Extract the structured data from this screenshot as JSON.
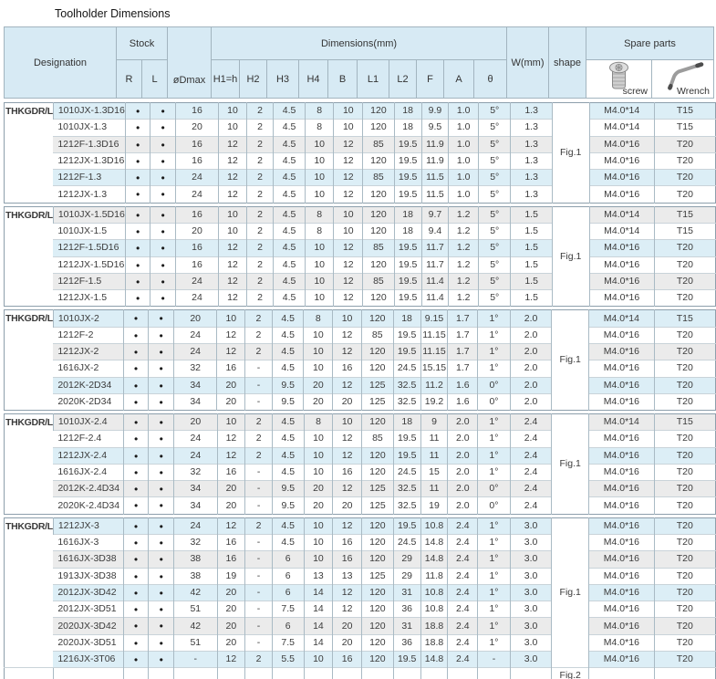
{
  "title": "Toolholder Dimensions",
  "colors": {
    "header_bg": "#d7eaf4",
    "row_blue": "#dceef6",
    "row_gray": "#ebebeb",
    "table_border": "#8d9fac"
  },
  "stock_dot": "●",
  "header": {
    "designation": "Designation",
    "stock": "Stock",
    "stock_r": "R",
    "stock_l": "L",
    "odmax": "øDmax",
    "dimensions": "Dimensions(mm)",
    "dim_cols": [
      "H1=h",
      "H2",
      "H3",
      "H4",
      "B",
      "L1",
      "L2",
      "F",
      "A",
      "θ"
    ],
    "w": "W(mm)",
    "shape": "shape",
    "spare_parts": "Spare parts",
    "screw": "screw",
    "wrench": "Wrench"
  },
  "groups": [
    {
      "prefix": "THKGDR/L",
      "fig": "Fig.1",
      "rows": [
        {
          "model": "1010JX-1.3D16",
          "odmax": "16",
          "h1": "10",
          "h2": "2",
          "h3": "4.5",
          "h4": "8",
          "b": "10",
          "l1": "120",
          "l2": "18",
          "f": "9.9",
          "a": "1.0",
          "theta": "5°",
          "w": "1.3",
          "screw": "M4.0*14",
          "wrench": "T15",
          "shade": "blue"
        },
        {
          "model": "1010JX-1.3",
          "odmax": "20",
          "h1": "10",
          "h2": "2",
          "h3": "4.5",
          "h4": "8",
          "b": "10",
          "l1": "120",
          "l2": "18",
          "f": "9.5",
          "a": "1.0",
          "theta": "5°",
          "w": "1.3",
          "screw": "M4.0*14",
          "wrench": "T15",
          "shade": "white"
        },
        {
          "model": "1212F-1.3D16",
          "odmax": "16",
          "h1": "12",
          "h2": "2",
          "h3": "4.5",
          "h4": "10",
          "b": "12",
          "l1": "85",
          "l2": "19.5",
          "f": "11.9",
          "a": "1.0",
          "theta": "5°",
          "w": "1.3",
          "screw": "M4.0*16",
          "wrench": "T20",
          "shade": "gray"
        },
        {
          "model": "1212JX-1.3D16",
          "odmax": "16",
          "h1": "12",
          "h2": "2",
          "h3": "4.5",
          "h4": "10",
          "b": "12",
          "l1": "120",
          "l2": "19.5",
          "f": "11.9",
          "a": "1.0",
          "theta": "5°",
          "w": "1.3",
          "screw": "M4.0*16",
          "wrench": "T20",
          "shade": "white"
        },
        {
          "model": "1212F-1.3",
          "odmax": "24",
          "h1": "12",
          "h2": "2",
          "h3": "4.5",
          "h4": "10",
          "b": "12",
          "l1": "85",
          "l2": "19.5",
          "f": "11.5",
          "a": "1.0",
          "theta": "5°",
          "w": "1.3",
          "screw": "M4.0*16",
          "wrench": "T20",
          "shade": "blue"
        },
        {
          "model": "1212JX-1.3",
          "odmax": "24",
          "h1": "12",
          "h2": "2",
          "h3": "4.5",
          "h4": "10",
          "b": "12",
          "l1": "120",
          "l2": "19.5",
          "f": "11.5",
          "a": "1.0",
          "theta": "5°",
          "w": "1.3",
          "screw": "M4.0*16",
          "wrench": "T20",
          "shade": "white"
        }
      ]
    },
    {
      "prefix": "THKGDR/L",
      "fig": "Fig.1",
      "rows": [
        {
          "model": "1010JX-1.5D16",
          "odmax": "16",
          "h1": "10",
          "h2": "2",
          "h3": "4.5",
          "h4": "8",
          "b": "10",
          "l1": "120",
          "l2": "18",
          "f": "9.7",
          "a": "1.2",
          "theta": "5°",
          "w": "1.5",
          "screw": "M4.0*14",
          "wrench": "T15",
          "shade": "gray"
        },
        {
          "model": "1010JX-1.5",
          "odmax": "20",
          "h1": "10",
          "h2": "2",
          "h3": "4.5",
          "h4": "8",
          "b": "10",
          "l1": "120",
          "l2": "18",
          "f": "9.4",
          "a": "1.2",
          "theta": "5°",
          "w": "1.5",
          "screw": "M4.0*14",
          "wrench": "T15",
          "shade": "white"
        },
        {
          "model": "1212F-1.5D16",
          "odmax": "16",
          "h1": "12",
          "h2": "2",
          "h3": "4.5",
          "h4": "10",
          "b": "12",
          "l1": "85",
          "l2": "19.5",
          "f": "11.7",
          "a": "1.2",
          "theta": "5°",
          "w": "1.5",
          "screw": "M4.0*16",
          "wrench": "T20",
          "shade": "blue"
        },
        {
          "model": "1212JX-1.5D16",
          "odmax": "16",
          "h1": "12",
          "h2": "2",
          "h3": "4.5",
          "h4": "10",
          "b": "12",
          "l1": "120",
          "l2": "19.5",
          "f": "11.7",
          "a": "1.2",
          "theta": "5°",
          "w": "1.5",
          "screw": "M4.0*16",
          "wrench": "T20",
          "shade": "white"
        },
        {
          "model": "1212F-1.5",
          "odmax": "24",
          "h1": "12",
          "h2": "2",
          "h3": "4.5",
          "h4": "10",
          "b": "12",
          "l1": "85",
          "l2": "19.5",
          "f": "11.4",
          "a": "1.2",
          "theta": "5°",
          "w": "1.5",
          "screw": "M4.0*16",
          "wrench": "T20",
          "shade": "gray"
        },
        {
          "model": "1212JX-1.5",
          "odmax": "24",
          "h1": "12",
          "h2": "2",
          "h3": "4.5",
          "h4": "10",
          "b": "12",
          "l1": "120",
          "l2": "19.5",
          "f": "11.4",
          "a": "1.2",
          "theta": "5°",
          "w": "1.5",
          "screw": "M4.0*16",
          "wrench": "T20",
          "shade": "white"
        }
      ]
    },
    {
      "prefix": "THKGDR/L",
      "fig": "Fig.1",
      "rows": [
        {
          "model": "1010JX-2",
          "odmax": "20",
          "h1": "10",
          "h2": "2",
          "h3": "4.5",
          "h4": "8",
          "b": "10",
          "l1": "120",
          "l2": "18",
          "f": "9.15",
          "a": "1.7",
          "theta": "1°",
          "w": "2.0",
          "screw": "M4.0*14",
          "wrench": "T15",
          "shade": "blue"
        },
        {
          "model": "1212F-2",
          "odmax": "24",
          "h1": "12",
          "h2": "2",
          "h3": "4.5",
          "h4": "10",
          "b": "12",
          "l1": "85",
          "l2": "19.5",
          "f": "11.15",
          "a": "1.7",
          "theta": "1°",
          "w": "2.0",
          "screw": "M4.0*16",
          "wrench": "T20",
          "shade": "white"
        },
        {
          "model": "1212JX-2",
          "odmax": "24",
          "h1": "12",
          "h2": "2",
          "h3": "4.5",
          "h4": "10",
          "b": "12",
          "l1": "120",
          "l2": "19.5",
          "f": "11.15",
          "a": "1.7",
          "theta": "1°",
          "w": "2.0",
          "screw": "M4.0*16",
          "wrench": "T20",
          "shade": "gray"
        },
        {
          "model": "1616JX-2",
          "odmax": "32",
          "h1": "16",
          "h2": "-",
          "h3": "4.5",
          "h4": "10",
          "b": "16",
          "l1": "120",
          "l2": "24.5",
          "f": "15.15",
          "a": "1.7",
          "theta": "1°",
          "w": "2.0",
          "screw": "M4.0*16",
          "wrench": "T20",
          "shade": "white"
        },
        {
          "model": "2012K-2D34",
          "odmax": "34",
          "h1": "20",
          "h2": "-",
          "h3": "9.5",
          "h4": "20",
          "b": "12",
          "l1": "125",
          "l2": "32.5",
          "f": "11.2",
          "a": "1.6",
          "theta": "0°",
          "w": "2.0",
          "screw": "M4.0*16",
          "wrench": "T20",
          "shade": "blue"
        },
        {
          "model": "2020K-2D34",
          "odmax": "34",
          "h1": "20",
          "h2": "-",
          "h3": "9.5",
          "h4": "20",
          "b": "20",
          "l1": "125",
          "l2": "32.5",
          "f": "19.2",
          "a": "1.6",
          "theta": "0°",
          "w": "2.0",
          "screw": "M4.0*16",
          "wrench": "T20",
          "shade": "white"
        }
      ]
    },
    {
      "prefix": "THKGDR/L",
      "fig": "Fig.1",
      "rows": [
        {
          "model": "1010JX-2.4",
          "odmax": "20",
          "h1": "10",
          "h2": "2",
          "h3": "4.5",
          "h4": "8",
          "b": "10",
          "l1": "120",
          "l2": "18",
          "f": "9",
          "a": "2.0",
          "theta": "1°",
          "w": "2.4",
          "screw": "M4.0*14",
          "wrench": "T15",
          "shade": "gray"
        },
        {
          "model": "1212F-2.4",
          "odmax": "24",
          "h1": "12",
          "h2": "2",
          "h3": "4.5",
          "h4": "10",
          "b": "12",
          "l1": "85",
          "l2": "19.5",
          "f": "11",
          "a": "2.0",
          "theta": "1°",
          "w": "2.4",
          "screw": "M4.0*16",
          "wrench": "T20",
          "shade": "white"
        },
        {
          "model": "1212JX-2.4",
          "odmax": "24",
          "h1": "12",
          "h2": "2",
          "h3": "4.5",
          "h4": "10",
          "b": "12",
          "l1": "120",
          "l2": "19.5",
          "f": "11",
          "a": "2.0",
          "theta": "1°",
          "w": "2.4",
          "screw": "M4.0*16",
          "wrench": "T20",
          "shade": "blue"
        },
        {
          "model": "1616JX-2.4",
          "odmax": "32",
          "h1": "16",
          "h2": "-",
          "h3": "4.5",
          "h4": "10",
          "b": "16",
          "l1": "120",
          "l2": "24.5",
          "f": "15",
          "a": "2.0",
          "theta": "1°",
          "w": "2.4",
          "screw": "M4.0*16",
          "wrench": "T20",
          "shade": "white"
        },
        {
          "model": "2012K-2.4D34",
          "odmax": "34",
          "h1": "20",
          "h2": "-",
          "h3": "9.5",
          "h4": "20",
          "b": "12",
          "l1": "125",
          "l2": "32.5",
          "f": "11",
          "a": "2.0",
          "theta": "0°",
          "w": "2.4",
          "screw": "M4.0*16",
          "wrench": "T20",
          "shade": "gray"
        },
        {
          "model": "2020K-2.4D34",
          "odmax": "34",
          "h1": "20",
          "h2": "-",
          "h3": "9.5",
          "h4": "20",
          "b": "20",
          "l1": "125",
          "l2": "32.5",
          "f": "19",
          "a": "2.0",
          "theta": "0°",
          "w": "2.4",
          "screw": "M4.0*16",
          "wrench": "T20",
          "shade": "white"
        }
      ]
    },
    {
      "prefix": "THKGDR/L",
      "fig": "Fig.1",
      "extra_row": {
        "fig": "Fig.2"
      },
      "rows": [
        {
          "model": "1212JX-3",
          "odmax": "24",
          "h1": "12",
          "h2": "2",
          "h3": "4.5",
          "h4": "10",
          "b": "12",
          "l1": "120",
          "l2": "19.5",
          "f": "10.8",
          "a": "2.4",
          "theta": "1°",
          "w": "3.0",
          "screw": "M4.0*16",
          "wrench": "T20",
          "shade": "blue"
        },
        {
          "model": "1616JX-3",
          "odmax": "32",
          "h1": "16",
          "h2": "-",
          "h3": "4.5",
          "h4": "10",
          "b": "16",
          "l1": "120",
          "l2": "24.5",
          "f": "14.8",
          "a": "2.4",
          "theta": "1°",
          "w": "3.0",
          "screw": "M4.0*16",
          "wrench": "T20",
          "shade": "white"
        },
        {
          "model": "1616JX-3D38",
          "odmax": "38",
          "h1": "16",
          "h2": "-",
          "h3": "6",
          "h4": "10",
          "b": "16",
          "l1": "120",
          "l2": "29",
          "f": "14.8",
          "a": "2.4",
          "theta": "1°",
          "w": "3.0",
          "screw": "M4.0*16",
          "wrench": "T20",
          "shade": "gray"
        },
        {
          "model": "1913JX-3D38",
          "odmax": "38",
          "h1": "19",
          "h2": "-",
          "h3": "6",
          "h4": "13",
          "b": "13",
          "l1": "125",
          "l2": "29",
          "f": "11.8",
          "a": "2.4",
          "theta": "1°",
          "w": "3.0",
          "screw": "M4.0*16",
          "wrench": "T20",
          "shade": "white"
        },
        {
          "model": "2012JX-3D42",
          "odmax": "42",
          "h1": "20",
          "h2": "-",
          "h3": "6",
          "h4": "14",
          "b": "12",
          "l1": "120",
          "l2": "31",
          "f": "10.8",
          "a": "2.4",
          "theta": "1°",
          "w": "3.0",
          "screw": "M4.0*16",
          "wrench": "T20",
          "shade": "blue"
        },
        {
          "model": "2012JX-3D51",
          "odmax": "51",
          "h1": "20",
          "h2": "-",
          "h3": "7.5",
          "h4": "14",
          "b": "12",
          "l1": "120",
          "l2": "36",
          "f": "10.8",
          "a": "2.4",
          "theta": "1°",
          "w": "3.0",
          "screw": "M4.0*16",
          "wrench": "T20",
          "shade": "white"
        },
        {
          "model": "2020JX-3D42",
          "odmax": "42",
          "h1": "20",
          "h2": "-",
          "h3": "6",
          "h4": "14",
          "b": "20",
          "l1": "120",
          "l2": "31",
          "f": "18.8",
          "a": "2.4",
          "theta": "1°",
          "w": "3.0",
          "screw": "M4.0*16",
          "wrench": "T20",
          "shade": "gray"
        },
        {
          "model": "2020JX-3D51",
          "odmax": "51",
          "h1": "20",
          "h2": "-",
          "h3": "7.5",
          "h4": "14",
          "b": "20",
          "l1": "120",
          "l2": "36",
          "f": "18.8",
          "a": "2.4",
          "theta": "1°",
          "w": "3.0",
          "screw": "M4.0*16",
          "wrench": "T20",
          "shade": "white"
        },
        {
          "model": "1216JX-3T06",
          "odmax": "-",
          "h1": "12",
          "h2": "2",
          "h3": "5.5",
          "h4": "10",
          "b": "16",
          "l1": "120",
          "l2": "19.5",
          "f": "14.8",
          "a": "2.4",
          "theta": "-",
          "w": "3.0",
          "screw": "M4.0*16",
          "wrench": "T20",
          "shade": "blue"
        }
      ]
    }
  ]
}
